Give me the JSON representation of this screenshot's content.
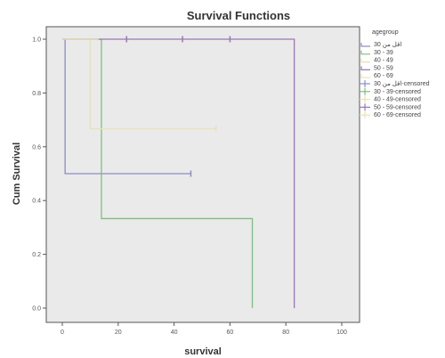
{
  "chart_data": {
    "type": "line",
    "title": "Survival Functions",
    "xlabel": "survival",
    "ylabel": "Cum Survival",
    "xlim": [
      0,
      100
    ],
    "ylim": [
      0,
      1.0
    ],
    "x_ticks": [
      "0",
      "20",
      "40",
      "60",
      "80",
      "100"
    ],
    "y_ticks": [
      "0.0",
      "0.2",
      "0.4",
      "0.6",
      "0.8",
      "1.0"
    ],
    "grid": false,
    "legend_title": "agegroup",
    "legend_position": "right",
    "series": [
      {
        "name": "اقل من 30",
        "color": "#8c8cc8",
        "steps": [
          [
            0,
            1.0
          ],
          [
            1,
            1.0
          ],
          [
            1,
            0.5
          ],
          [
            46,
            0.5
          ]
        ],
        "censored": [
          [
            46,
            0.5
          ]
        ]
      },
      {
        "name": "30 - 39",
        "color": "#7fbf7f",
        "steps": [
          [
            0,
            1.0
          ],
          [
            14,
            1.0
          ],
          [
            14,
            0.333
          ],
          [
            68,
            0.333
          ],
          [
            68,
            0.0
          ]
        ],
        "censored": []
      },
      {
        "name": "40 - 49",
        "color": "#e8e2b8",
        "steps": [
          [
            0,
            1.0
          ],
          [
            10,
            1.0
          ],
          [
            10,
            0.667
          ],
          [
            55,
            0.667
          ]
        ],
        "censored": [
          [
            55,
            0.667
          ]
        ]
      },
      {
        "name": "50 - 59",
        "color": "#9a77b5",
        "steps": [
          [
            0,
            1.0
          ],
          [
            83,
            1.0
          ],
          [
            83,
            0.0
          ]
        ],
        "censored": [
          [
            23,
            1.0
          ],
          [
            43,
            1.0
          ],
          [
            60,
            1.0
          ]
        ]
      },
      {
        "name": "60 - 69",
        "color": "#e8e2b8",
        "steps": [
          [
            0,
            1.0
          ],
          [
            13,
            1.0
          ]
        ],
        "censored": []
      }
    ],
    "legend_entries": [
      {
        "label": "اقل من 30",
        "color": "#8c8cc8",
        "kind": "line"
      },
      {
        "label": "30 - 39",
        "color": "#7fbf7f",
        "kind": "line"
      },
      {
        "label": "40 - 49",
        "color": "#e8e2b8",
        "kind": "line"
      },
      {
        "label": "50 - 59",
        "color": "#9a77b5",
        "kind": "line"
      },
      {
        "label": "60 - 69",
        "color": "#e8e2b8",
        "kind": "line"
      },
      {
        "label": "اقل من 30-censored",
        "color": "#8c8cc8",
        "kind": "censor"
      },
      {
        "label": "30 - 39-censored",
        "color": "#7fbf7f",
        "kind": "censor"
      },
      {
        "label": "40 - 49-censored",
        "color": "#e8e2b8",
        "kind": "censor"
      },
      {
        "label": "50 - 59-censored",
        "color": "#9a77b5",
        "kind": "censor"
      },
      {
        "label": "60 - 69-censored",
        "color": "#e8e2b8",
        "kind": "censor"
      }
    ],
    "plot_background": "#eaeaea"
  }
}
